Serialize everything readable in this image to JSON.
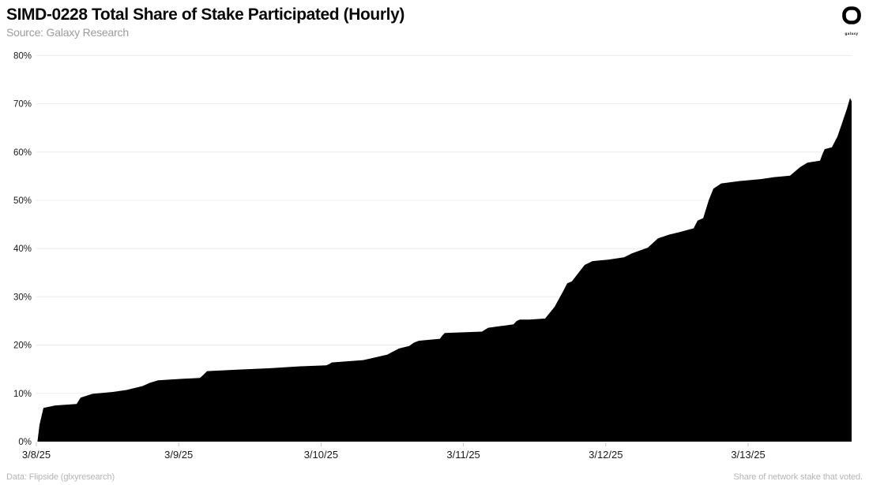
{
  "header": {
    "title": "SIMD-0228 Total Share of Stake Participated (Hourly)",
    "subtitle": "Source: Galaxy Research"
  },
  "branding": {
    "logo_text": "galaxy"
  },
  "footer": {
    "left": "Data: Flipside (glxyresearch)",
    "right": "Share of network stake that voted."
  },
  "chart_data": {
    "type": "area",
    "title": "SIMD-0228 Total Share of Stake Participated (Hourly)",
    "subtitle": "Source: Galaxy Research",
    "series_name": "Share of network stake that voted",
    "fill_color": "#000000",
    "grid_color": "#ececec",
    "tick_color": "#c9c9c9",
    "ylabel": "",
    "xlabel": "",
    "ylim": [
      0,
      80
    ],
    "y_ticks": [
      0,
      10,
      20,
      30,
      40,
      50,
      60,
      70,
      80
    ],
    "y_tick_suffix": "%",
    "x_ticks": [
      {
        "d": 0,
        "label": "3/8/25"
      },
      {
        "d": 1,
        "label": "3/9/25"
      },
      {
        "d": 2,
        "label": "3/10/25"
      },
      {
        "d": 3,
        "label": "3/11/25"
      },
      {
        "d": 4,
        "label": "3/12/25"
      },
      {
        "d": 5,
        "label": "3/13/25"
      }
    ],
    "x_unit": "days since 3/8/25 00:00",
    "points": [
      [
        0.008,
        0.0
      ],
      [
        0.022,
        3.5
      ],
      [
        0.05,
        7.0
      ],
      [
        0.133,
        7.5
      ],
      [
        0.283,
        7.8
      ],
      [
        0.311,
        9.1
      ],
      [
        0.394,
        9.9
      ],
      [
        0.538,
        10.3
      ],
      [
        0.633,
        10.7
      ],
      [
        0.744,
        11.5
      ],
      [
        0.8,
        12.2
      ],
      [
        0.855,
        12.7
      ],
      [
        1.021,
        13.0
      ],
      [
        1.149,
        13.2
      ],
      [
        1.176,
        13.9
      ],
      [
        1.199,
        14.6
      ],
      [
        1.41,
        14.9
      ],
      [
        1.631,
        15.2
      ],
      [
        1.854,
        15.6
      ],
      [
        2.037,
        15.8
      ],
      [
        2.059,
        16.1
      ],
      [
        2.075,
        16.4
      ],
      [
        2.297,
        16.9
      ],
      [
        2.464,
        18.0
      ],
      [
        2.547,
        19.3
      ],
      [
        2.619,
        19.8
      ],
      [
        2.652,
        20.5
      ],
      [
        2.686,
        20.9
      ],
      [
        2.758,
        21.1
      ],
      [
        2.835,
        21.3
      ],
      [
        2.852,
        22.0
      ],
      [
        2.869,
        22.5
      ],
      [
        3.13,
        22.8
      ],
      [
        3.152,
        23.2
      ],
      [
        3.174,
        23.6
      ],
      [
        3.352,
        24.3
      ],
      [
        3.374,
        25.0
      ],
      [
        3.396,
        25.3
      ],
      [
        3.463,
        25.3
      ],
      [
        3.574,
        25.5
      ],
      [
        3.64,
        27.9
      ],
      [
        3.701,
        31.2
      ],
      [
        3.729,
        32.8
      ],
      [
        3.762,
        33.2
      ],
      [
        3.851,
        36.6
      ],
      [
        3.906,
        37.4
      ],
      [
        4.017,
        37.7
      ],
      [
        4.128,
        38.2
      ],
      [
        4.184,
        39.0
      ],
      [
        4.295,
        40.2
      ],
      [
        4.367,
        42.1
      ],
      [
        4.445,
        42.9
      ],
      [
        4.517,
        43.4
      ],
      [
        4.617,
        44.2
      ],
      [
        4.645,
        45.8
      ],
      [
        4.684,
        46.3
      ],
      [
        4.723,
        50.0
      ],
      [
        4.756,
        52.4
      ],
      [
        4.811,
        53.5
      ],
      [
        4.944,
        54.0
      ],
      [
        5.089,
        54.4
      ],
      [
        5.183,
        54.8
      ],
      [
        5.294,
        55.1
      ],
      [
        5.366,
        56.9
      ],
      [
        5.416,
        57.8
      ],
      [
        5.505,
        58.2
      ],
      [
        5.522,
        59.6
      ],
      [
        5.538,
        60.6
      ],
      [
        5.588,
        61.0
      ],
      [
        5.627,
        63.2
      ],
      [
        5.66,
        66.0
      ],
      [
        5.694,
        69.0
      ],
      [
        5.716,
        71.2
      ],
      [
        5.727,
        70.5
      ]
    ]
  }
}
